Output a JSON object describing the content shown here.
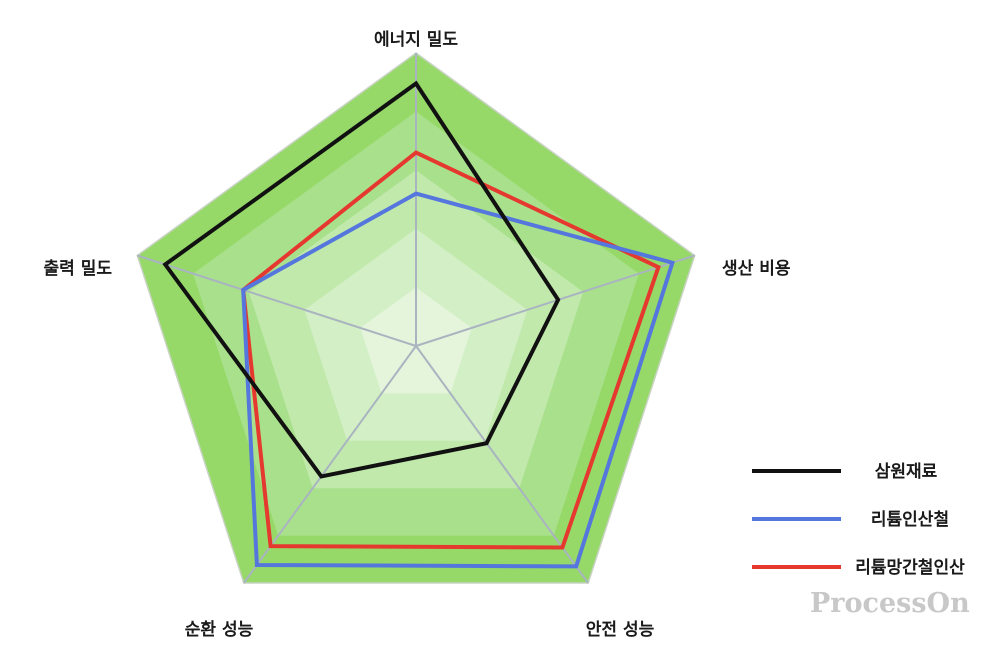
{
  "chart_data": {
    "type": "radar",
    "axes": [
      "에너지 밀도",
      "생산 비용",
      "안전 성능",
      "순환 성능",
      "출력 밀도"
    ],
    "rmax": 5,
    "levels": 5,
    "band_colors": [
      "#e4f5dc",
      "#d3efc5",
      "#c1e9ac",
      "#a9e08c",
      "#96d968"
    ],
    "spoke_color": "#a9b4c0",
    "series": [
      {
        "name": "삼원재료",
        "color": "#111111",
        "values": [
          4.48,
          2.55,
          2.05,
          2.75,
          4.5
        ]
      },
      {
        "name": "리튬인산철",
        "color": "#5577dd",
        "values": [
          2.6,
          4.6,
          4.65,
          4.62,
          3.1
        ]
      },
      {
        "name": "리튬망간철인산",
        "color": "#e5382f",
        "values": [
          3.3,
          4.35,
          4.25,
          4.22,
          3.1
        ]
      }
    ],
    "legend_position": "right"
  },
  "watermark": "ProcessOn"
}
